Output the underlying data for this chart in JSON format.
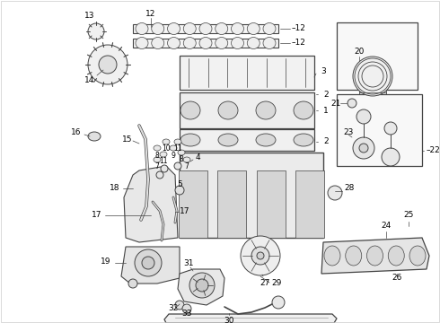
{
  "bg_color": "#ffffff",
  "line_color": "#444444",
  "text_color": "#000000",
  "border_color": "#888888",
  "figsize": [
    4.9,
    3.6
  ],
  "dpi": 100
}
